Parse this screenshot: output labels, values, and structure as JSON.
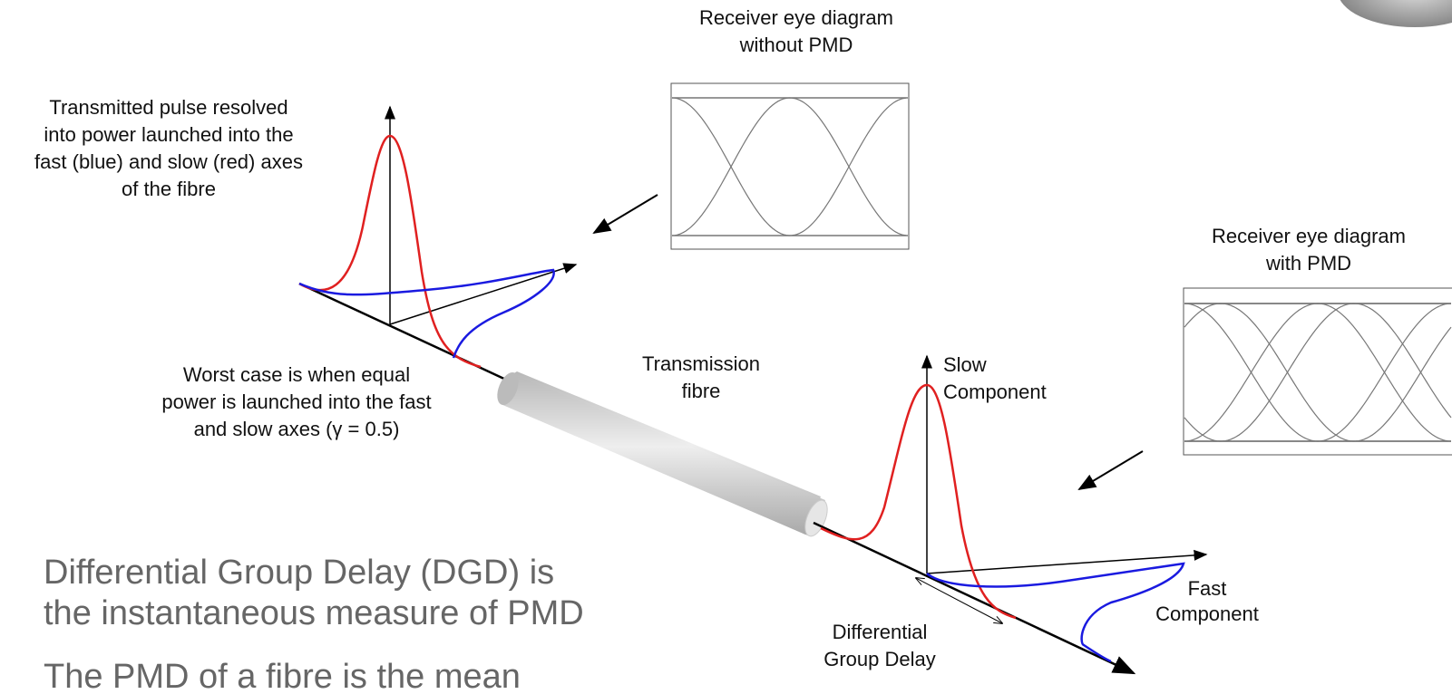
{
  "eye_without_pmd": {
    "title_lines": [
      "Receiver eye diagram",
      "without PMD"
    ]
  },
  "eye_with_pmd": {
    "title_lines": [
      "Receiver eye diagram",
      "with PMD"
    ]
  },
  "transmitted_note": {
    "lines": [
      "Transmitted pulse resolved",
      "into power launched into the",
      "fast (blue) and slow (red) axes",
      "of the fibre"
    ]
  },
  "worst_case_note": {
    "lines": [
      "Worst case is when equal",
      "power is launched into the fast",
      "and slow axes (γ = 0.5)"
    ]
  },
  "fibre_label": {
    "lines": [
      "Transmission",
      "fibre"
    ]
  },
  "slow_label": {
    "lines": [
      "Slow",
      "Component"
    ]
  },
  "fast_label": {
    "lines": [
      "Fast",
      "Component"
    ]
  },
  "dgd_label": {
    "lines": [
      "Differential",
      "Group Delay"
    ]
  },
  "body_text": {
    "lines": [
      "Differential Group Delay (DGD) is",
      "the instantaneous measure of PMD",
      "The PMD of a fibre is the mean"
    ]
  }
}
